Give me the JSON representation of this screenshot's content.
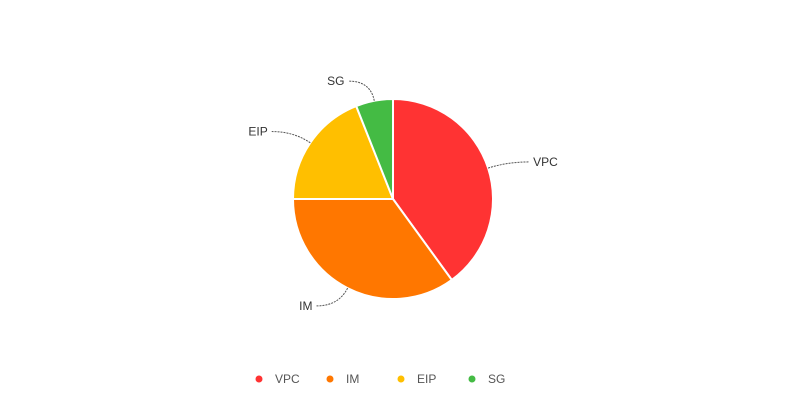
{
  "chart_data": {
    "type": "pie",
    "title": "",
    "categories": [
      "VPC",
      "IM",
      "EIP",
      "SG"
    ],
    "values": [
      40,
      35,
      19,
      6
    ],
    "colors": [
      "#ff3333",
      "#ff7700",
      "#ffbf00",
      "#44bb44"
    ],
    "legend": {
      "position": "bottom",
      "items": [
        "VPC",
        "IM",
        "EIP",
        "SG"
      ]
    },
    "start_angle_deg": 0,
    "direction": "clockwise"
  }
}
